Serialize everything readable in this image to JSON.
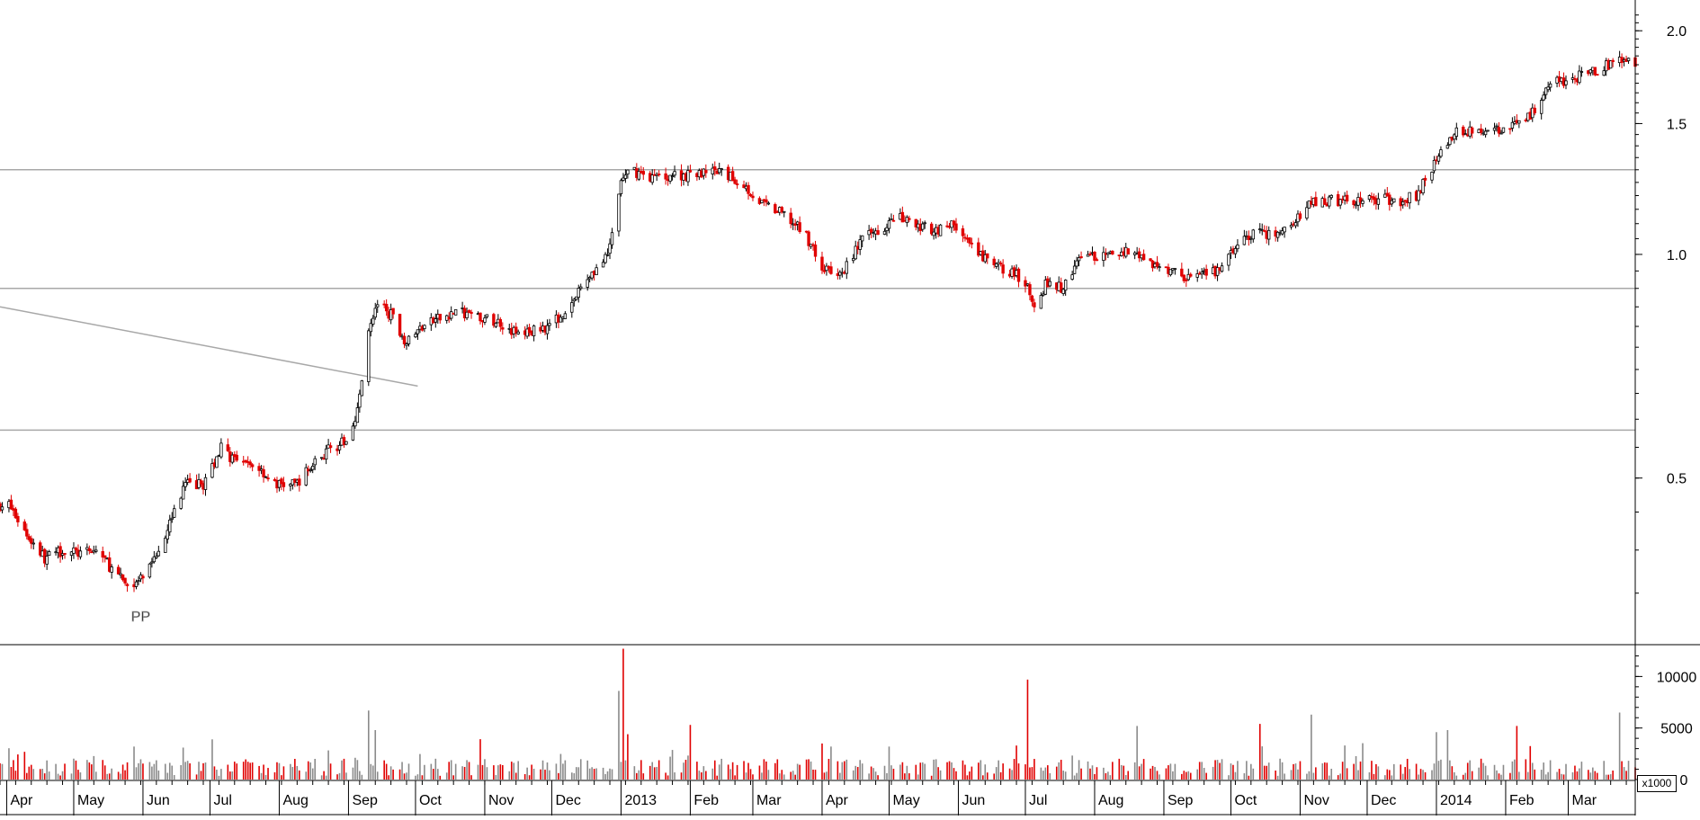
{
  "chart_data": {
    "type": "candlestick",
    "price_panel": {
      "scale": "log",
      "ylim": [
        0.3,
        2.2
      ],
      "yticks": [
        {
          "label": "2.0",
          "value": 2.0
        },
        {
          "label": "1.5",
          "value": 1.5
        },
        {
          "label": "1.0",
          "value": 1.0
        },
        {
          "label": "0.5",
          "value": 0.5
        }
      ],
      "up_color": "#000000",
      "down_color": "#e00000",
      "close_trend": [
        [
          "2012-04-02",
          0.46
        ],
        [
          "2012-04-10",
          0.42
        ],
        [
          "2012-04-18",
          0.39
        ],
        [
          "2012-04-26",
          0.4
        ],
        [
          "2012-05-05",
          0.395
        ],
        [
          "2012-05-12",
          0.4
        ],
        [
          "2012-05-20",
          0.37
        ],
        [
          "2012-05-27",
          0.355
        ],
        [
          "2012-06-05",
          0.38
        ],
        [
          "2012-06-12",
          0.43
        ],
        [
          "2012-06-20",
          0.49
        ],
        [
          "2012-06-28",
          0.49
        ],
        [
          "2012-07-06",
          0.55
        ],
        [
          "2012-07-14",
          0.52
        ],
        [
          "2012-07-22",
          0.52
        ],
        [
          "2012-07-30",
          0.49
        ],
        [
          "2012-08-08",
          0.49
        ],
        [
          "2012-08-16",
          0.52
        ],
        [
          "2012-08-24",
          0.55
        ],
        [
          "2012-09-01",
          0.56
        ],
        [
          "2012-09-06",
          0.64
        ],
        [
          "2012-09-10",
          0.8
        ],
        [
          "2012-09-14",
          0.86
        ],
        [
          "2012-09-20",
          0.83
        ],
        [
          "2012-09-27",
          0.76
        ],
        [
          "2012-10-04",
          0.8
        ],
        [
          "2012-10-12",
          0.82
        ],
        [
          "2012-10-20",
          0.84
        ],
        [
          "2012-10-30",
          0.82
        ],
        [
          "2012-11-08",
          0.81
        ],
        [
          "2012-11-16",
          0.78
        ],
        [
          "2012-11-24",
          0.79
        ],
        [
          "2012-12-02",
          0.81
        ],
        [
          "2012-12-10",
          0.86
        ],
        [
          "2012-12-18",
          0.94
        ],
        [
          "2012-12-26",
          0.99
        ],
        [
          "2013-01-01",
          1.25
        ],
        [
          "2013-01-05",
          1.3
        ],
        [
          "2013-01-15",
          1.27
        ],
        [
          "2013-01-25",
          1.28
        ],
        [
          "2013-02-05",
          1.28
        ],
        [
          "2013-02-15",
          1.29
        ],
        [
          "2013-02-25",
          1.24
        ],
        [
          "2013-03-05",
          1.17
        ],
        [
          "2013-03-15",
          1.13
        ],
        [
          "2013-03-25",
          1.06
        ],
        [
          "2013-04-02",
          0.95
        ],
        [
          "2013-04-10",
          0.94
        ],
        [
          "2013-04-18",
          1.04
        ],
        [
          "2013-04-26",
          1.08
        ],
        [
          "2013-05-05",
          1.12
        ],
        [
          "2013-05-14",
          1.09
        ],
        [
          "2013-05-22",
          1.08
        ],
        [
          "2013-05-30",
          1.1
        ],
        [
          "2013-06-08",
          1.01
        ],
        [
          "2013-06-16",
          0.97
        ],
        [
          "2013-06-24",
          0.95
        ],
        [
          "2013-07-01",
          0.92
        ],
        [
          "2013-07-05",
          0.86
        ],
        [
          "2013-07-10",
          0.91
        ],
        [
          "2013-07-18",
          0.9
        ],
        [
          "2013-07-26",
          1.0
        ],
        [
          "2013-08-05",
          0.99
        ],
        [
          "2013-08-14",
          1.01
        ],
        [
          "2013-08-22",
          1.0
        ],
        [
          "2013-08-30",
          0.96
        ],
        [
          "2013-09-08",
          0.94
        ],
        [
          "2013-09-16",
          0.93
        ],
        [
          "2013-09-25",
          0.95
        ],
        [
          "2013-10-04",
          1.03
        ],
        [
          "2013-10-12",
          1.07
        ],
        [
          "2013-10-20",
          1.06
        ],
        [
          "2013-10-28",
          1.09
        ],
        [
          "2013-11-06",
          1.17
        ],
        [
          "2013-11-15",
          1.18
        ],
        [
          "2013-11-25",
          1.18
        ],
        [
          "2013-12-05",
          1.19
        ],
        [
          "2013-12-15",
          1.18
        ],
        [
          "2013-12-23",
          1.2
        ],
        [
          "2013-12-31",
          1.33
        ],
        [
          "2014-01-08",
          1.45
        ],
        [
          "2014-01-16",
          1.47
        ],
        [
          "2014-01-26",
          1.46
        ],
        [
          "2014-02-03",
          1.48
        ],
        [
          "2014-02-12",
          1.53
        ],
        [
          "2014-02-20",
          1.7
        ],
        [
          "2014-03-01",
          1.72
        ],
        [
          "2014-03-10",
          1.75
        ],
        [
          "2014-03-18",
          1.8
        ],
        [
          "2014-03-26",
          1.82
        ]
      ],
      "horizontal_lines": [
        1.3,
        0.9,
        0.58
      ],
      "trendline": [
        [
          "2012-03-29",
          0.85
        ],
        [
          "2012-10-02",
          0.665
        ]
      ],
      "annotation": {
        "date": "2012-05-31",
        "value": 0.345,
        "label": "PP"
      }
    },
    "volume_panel": {
      "unit_label": "x1000",
      "ylim": [
        0,
        13000
      ],
      "yticks": [
        {
          "label": "10000",
          "value": 10000
        },
        {
          "label": "5000",
          "value": 5000
        },
        {
          "label": "0",
          "value": 0
        }
      ],
      "base_level": 1200,
      "notable_bars": [
        [
          "2012-05-28",
          3200,
          "up"
        ],
        [
          "2012-06-19",
          3100,
          "up"
        ],
        [
          "2012-07-02",
          3900,
          "up"
        ],
        [
          "2012-09-10",
          6700,
          "up"
        ],
        [
          "2012-09-13",
          4800,
          "up"
        ],
        [
          "2012-12-22",
          3800,
          "up"
        ],
        [
          "2012-12-31",
          8600,
          "up"
        ],
        [
          "2013-01-02",
          12700,
          "down"
        ],
        [
          "2013-01-04",
          4400,
          "down"
        ],
        [
          "2013-02-01",
          5300,
          "down"
        ],
        [
          "2013-04-01",
          3500,
          "down"
        ],
        [
          "2013-04-05",
          3200,
          "up"
        ],
        [
          "2013-05-01",
          3200,
          "up"
        ],
        [
          "2013-06-27",
          3300,
          "down"
        ],
        [
          "2013-07-02",
          9700,
          "down"
        ],
        [
          "2013-08-20",
          5200,
          "up"
        ],
        [
          "2013-10-14",
          5400,
          "down"
        ],
        [
          "2013-11-06",
          6300,
          "up"
        ],
        [
          "2014-01-01",
          4600,
          "up"
        ],
        [
          "2014-01-06",
          4800,
          "up"
        ],
        [
          "2014-02-06",
          5200,
          "down"
        ],
        [
          "2014-03-24",
          6500,
          "up"
        ]
      ]
    },
    "x_axis": {
      "start": "2012-03-29",
      "end": "2014-03-31",
      "ticks": [
        {
          "label": "Apr",
          "date": "2012-04-01"
        },
        {
          "label": "May",
          "date": "2012-05-01"
        },
        {
          "label": "Jun",
          "date": "2012-06-01"
        },
        {
          "label": "Jul",
          "date": "2012-07-01"
        },
        {
          "label": "Aug",
          "date": "2012-08-01"
        },
        {
          "label": "Sep",
          "date": "2012-09-01"
        },
        {
          "label": "Oct",
          "date": "2012-10-01"
        },
        {
          "label": "Nov",
          "date": "2012-11-01"
        },
        {
          "label": "Dec",
          "date": "2012-12-01"
        },
        {
          "label": "2013",
          "date": "2013-01-01"
        },
        {
          "label": "Feb",
          "date": "2013-02-01"
        },
        {
          "label": "Mar",
          "date": "2013-03-01"
        },
        {
          "label": "Apr",
          "date": "2013-04-01"
        },
        {
          "label": "May",
          "date": "2013-05-01"
        },
        {
          "label": "Jun",
          "date": "2013-06-01"
        },
        {
          "label": "Jul",
          "date": "2013-07-01"
        },
        {
          "label": "Aug",
          "date": "2013-08-01"
        },
        {
          "label": "Sep",
          "date": "2013-09-01"
        },
        {
          "label": "Oct",
          "date": "2013-10-01"
        },
        {
          "label": "Nov",
          "date": "2013-11-01"
        },
        {
          "label": "Dec",
          "date": "2013-12-01"
        },
        {
          "label": "2014",
          "date": "2014-01-01"
        },
        {
          "label": "Feb",
          "date": "2014-02-01"
        },
        {
          "label": "Mar",
          "date": "2014-03-01"
        }
      ]
    }
  }
}
